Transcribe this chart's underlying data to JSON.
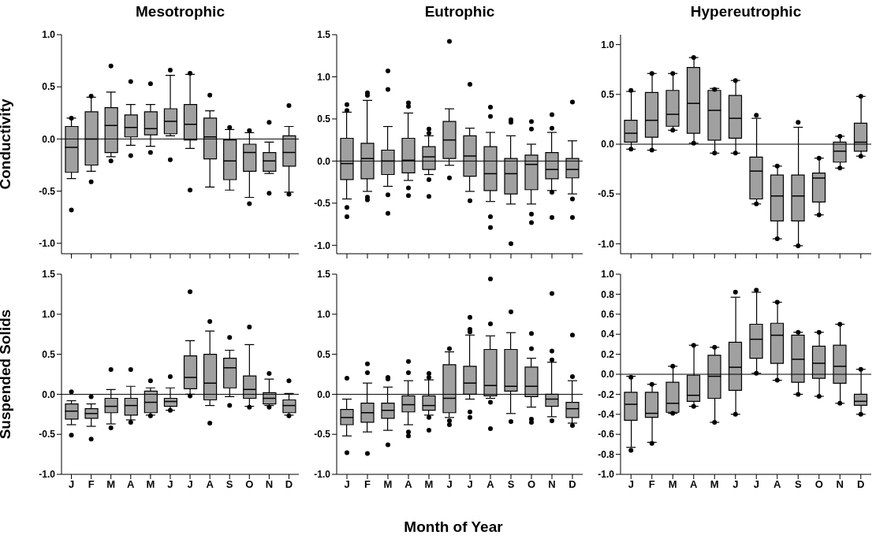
{
  "chart_data": [
    {
      "type": "box",
      "title": "Mesotrophic",
      "ylabel": "Conductivity",
      "categories": [
        null,
        null,
        null,
        null,
        null,
        null,
        null,
        null,
        null,
        null,
        null,
        null
      ],
      "color": "#a0a0a0",
      "ylim": [
        -1.1,
        1.0
      ],
      "yticks": [
        {
          "value": -1.0,
          "label": "-1.0"
        },
        {
          "value": -0.5,
          "label": "-0.5"
        },
        {
          "value": 0,
          "label": "0.0"
        },
        {
          "value": 0.5,
          "label": "0.5"
        },
        {
          "value": 1.0,
          "label": "1.0"
        }
      ],
      "tick_labels": "y",
      "ref_lines": [
        {
          "axis": "y",
          "value": 0
        }
      ],
      "boxes": [
        {
          "low": -0.38,
          "q1": -0.32,
          "median": -0.08,
          "q3": 0.12,
          "high": 0.2,
          "outliers": [
            0.2,
            -0.68
          ]
        },
        {
          "low": -0.31,
          "q1": -0.25,
          "median": 0.0,
          "q3": 0.26,
          "high": 0.4,
          "outliers": [
            0.41,
            -0.41
          ]
        },
        {
          "low": -0.17,
          "q1": -0.13,
          "median": 0.13,
          "q3": 0.3,
          "high": 0.45,
          "outliers": [
            0.7,
            -0.21
          ]
        },
        {
          "low": -0.06,
          "q1": 0.02,
          "median": 0.11,
          "q3": 0.23,
          "high": 0.33,
          "outliers": [
            0.55,
            -0.16
          ]
        },
        {
          "low": -0.07,
          "q1": 0.04,
          "median": 0.1,
          "q3": 0.26,
          "high": 0.33,
          "outliers": [
            0.53,
            -0.13
          ]
        },
        {
          "low": 0.03,
          "q1": 0.05,
          "median": 0.17,
          "q3": 0.29,
          "high": 0.61,
          "outliers": [
            0.66,
            -0.2
          ]
        },
        {
          "low": -0.09,
          "q1": -0.01,
          "median": 0.14,
          "q3": 0.33,
          "high": 0.62,
          "outliers": [
            0.63,
            -0.49
          ]
        },
        {
          "low": -0.46,
          "q1": -0.19,
          "median": 0.02,
          "q3": 0.2,
          "high": 0.27,
          "outliers": [
            0.42
          ]
        },
        {
          "low": -0.49,
          "q1": -0.39,
          "median": -0.21,
          "q3": -0.01,
          "high": 0.09,
          "outliers": [
            0.11
          ]
        },
        {
          "low": -0.56,
          "q1": -0.31,
          "median": -0.13,
          "q3": -0.05,
          "high": 0.06,
          "outliers": [
            0.08,
            -0.62
          ]
        },
        {
          "low": -0.33,
          "q1": -0.31,
          "median": -0.21,
          "q3": -0.13,
          "high": -0.03,
          "outliers": [
            0.16,
            -0.52
          ]
        },
        {
          "low": -0.51,
          "q1": -0.26,
          "median": -0.13,
          "q3": 0.03,
          "high": 0.12,
          "outliers": [
            0.32,
            -0.53
          ]
        }
      ]
    },
    {
      "type": "box",
      "title": "Eutrophic",
      "categories": [
        null,
        null,
        null,
        null,
        null,
        null,
        null,
        null,
        null,
        null,
        null,
        null
      ],
      "color": "#a0a0a0",
      "ylim": [
        -1.1,
        1.5
      ],
      "yticks": [
        {
          "value": -1.0,
          "label": "-1.0"
        },
        {
          "value": -0.5,
          "label": "-0.5"
        },
        {
          "value": 0,
          "label": "0.0"
        },
        {
          "value": 0.5,
          "label": "0.5"
        },
        {
          "value": 1.0,
          "label": "1.0"
        },
        {
          "value": 1.5,
          "label": "1.5"
        }
      ],
      "tick_labels": "y",
      "ref_lines": [
        {
          "axis": "y",
          "value": 0
        }
      ],
      "boxes": [
        {
          "low": -0.45,
          "q1": -0.22,
          "median": -0.03,
          "q3": 0.27,
          "high": 0.58,
          "outliers": [
            0.67,
            0.6,
            -0.55,
            -0.66
          ]
        },
        {
          "low": -0.36,
          "q1": -0.21,
          "median": 0.03,
          "q3": 0.21,
          "high": 0.72,
          "outliers": [
            0.81,
            0.78,
            -0.43,
            -0.46
          ]
        },
        {
          "low": -0.3,
          "q1": -0.16,
          "median": 0.0,
          "q3": 0.13,
          "high": 0.41,
          "outliers": [
            1.07,
            0.85,
            -0.4,
            -0.62
          ]
        },
        {
          "low": -0.23,
          "q1": -0.14,
          "median": 0.01,
          "q3": 0.27,
          "high": 0.57,
          "outliers": [
            0.69,
            0.65,
            -0.32,
            -0.41
          ]
        },
        {
          "low": -0.16,
          "q1": -0.1,
          "median": 0.05,
          "q3": 0.17,
          "high": 0.3,
          "outliers": [
            0.38,
            0.33,
            -0.22,
            -0.42
          ]
        },
        {
          "low": -0.05,
          "q1": 0.03,
          "median": 0.25,
          "q3": 0.47,
          "high": 0.62,
          "outliers": [
            1.42,
            -0.2
          ]
        },
        {
          "low": -0.36,
          "q1": -0.18,
          "median": 0.06,
          "q3": 0.3,
          "high": 0.39,
          "outliers": [
            0.91,
            -0.47
          ]
        },
        {
          "low": -0.48,
          "q1": -0.35,
          "median": -0.15,
          "q3": 0.17,
          "high": 0.34,
          "outliers": [
            0.64,
            0.53,
            -0.66,
            -0.79
          ]
        },
        {
          "low": -0.51,
          "q1": -0.39,
          "median": -0.15,
          "q3": 0.03,
          "high": 0.3,
          "outliers": [
            0.49,
            0.46,
            -0.98
          ]
        },
        {
          "low": -0.51,
          "q1": -0.34,
          "median": -0.04,
          "q3": 0.07,
          "high": 0.2,
          "outliers": [
            0.47,
            0.38,
            -0.63,
            -0.73
          ]
        },
        {
          "low": -0.35,
          "q1": -0.21,
          "median": -0.1,
          "q3": 0.1,
          "high": 0.34,
          "outliers": [
            0.55,
            0.39,
            -0.37,
            -0.67
          ]
        },
        {
          "low": -0.39,
          "q1": -0.2,
          "median": -0.1,
          "q3": 0.03,
          "high": 0.24,
          "outliers": [
            0.7,
            -0.45,
            -0.67
          ]
        }
      ]
    },
    {
      "type": "box",
      "title": "Hypereutrophic",
      "categories": [
        null,
        null,
        null,
        null,
        null,
        null,
        null,
        null,
        null,
        null,
        null,
        null
      ],
      "color": "#a0a0a0",
      "ylim": [
        -1.1,
        1.1
      ],
      "yticks": [
        {
          "value": -1.0,
          "label": "-1.0"
        },
        {
          "value": -0.5,
          "label": "-0.5"
        },
        {
          "value": 0,
          "label": "0.0"
        },
        {
          "value": 0.5,
          "label": "0.5"
        },
        {
          "value": 1.0,
          "label": "1.0"
        }
      ],
      "tick_labels": "y",
      "ref_lines": [
        {
          "axis": "y",
          "value": 0
        }
      ],
      "boxes": [
        {
          "low": -0.05,
          "q1": 0.02,
          "median": 0.11,
          "q3": 0.24,
          "high": 0.53,
          "outliers": [
            0.54,
            -0.05
          ]
        },
        {
          "low": -0.06,
          "q1": 0.07,
          "median": 0.24,
          "q3": 0.52,
          "high": 0.71,
          "outliers": [
            0.71,
            -0.06
          ]
        },
        {
          "low": 0.14,
          "q1": 0.18,
          "median": 0.3,
          "q3": 0.54,
          "high": 0.71,
          "outliers": [
            0.71,
            0.14
          ]
        },
        {
          "low": 0.01,
          "q1": 0.11,
          "median": 0.41,
          "q3": 0.77,
          "high": 0.87,
          "outliers": [
            0.87,
            0.01
          ]
        },
        {
          "low": -0.09,
          "q1": 0.04,
          "median": 0.34,
          "q3": 0.54,
          "high": 0.56,
          "outliers": [
            0.55,
            -0.09
          ]
        },
        {
          "low": -0.09,
          "q1": 0.06,
          "median": 0.26,
          "q3": 0.49,
          "high": 0.64,
          "outliers": [
            0.64,
            -0.09
          ]
        },
        {
          "low": -0.6,
          "q1": -0.55,
          "median": -0.27,
          "q3": -0.13,
          "high": 0.26,
          "outliers": [
            0.29,
            -0.6
          ]
        },
        {
          "low": -0.95,
          "q1": -0.77,
          "median": -0.52,
          "q3": -0.31,
          "high": -0.22,
          "outliers": [
            -0.22,
            -0.95
          ]
        },
        {
          "low": -1.02,
          "q1": -0.77,
          "median": -0.52,
          "q3": -0.31,
          "high": 0.17,
          "outliers": [
            0.22,
            -1.02
          ]
        },
        {
          "low": -0.71,
          "q1": -0.58,
          "median": -0.34,
          "q3": -0.29,
          "high": -0.14,
          "outliers": [
            -0.14,
            -0.71
          ]
        },
        {
          "low": -0.24,
          "q1": -0.18,
          "median": -0.07,
          "q3": 0.02,
          "high": 0.08,
          "outliers": [
            0.08,
            -0.24
          ]
        },
        {
          "low": -0.12,
          "q1": -0.07,
          "median": 0.02,
          "q3": 0.21,
          "high": 0.48,
          "outliers": [
            0.48,
            -0.12
          ]
        }
      ]
    },
    {
      "type": "box",
      "ylabel": "Suspended Solids",
      "categories": [
        "J",
        "F",
        "M",
        "A",
        "M",
        "J",
        "J",
        "A",
        "S",
        "O",
        "N",
        "D"
      ],
      "color": "#a0a0a0",
      "ylim": [
        -1.0,
        1.5
      ],
      "yticks": [
        {
          "value": -1.0,
          "label": "-1.0"
        },
        {
          "value": -0.5,
          "label": "-0.5"
        },
        {
          "value": 0,
          "label": "0.0"
        },
        {
          "value": 0.5,
          "label": "0.5"
        },
        {
          "value": 1.0,
          "label": "1.0"
        },
        {
          "value": 1.5,
          "label": "1.5"
        }
      ],
      "ref_lines": [
        {
          "axis": "y",
          "value": 0
        }
      ],
      "boxes": [
        {
          "low": -0.38,
          "q1": -0.31,
          "median": -0.21,
          "q3": -0.12,
          "high": -0.08,
          "outliers": [
            0.03,
            -0.51
          ]
        },
        {
          "low": -0.4,
          "q1": -0.3,
          "median": -0.24,
          "q3": -0.18,
          "high": -0.12,
          "outliers": [
            -0.03,
            -0.56
          ]
        },
        {
          "low": -0.37,
          "q1": -0.23,
          "median": -0.15,
          "q3": -0.05,
          "high": 0.06,
          "outliers": [
            0.31,
            -0.42
          ]
        },
        {
          "low": -0.32,
          "q1": -0.26,
          "median": -0.14,
          "q3": -0.05,
          "high": 0.1,
          "outliers": [
            0.31,
            -0.35
          ]
        },
        {
          "low": -0.26,
          "q1": -0.23,
          "median": -0.1,
          "q3": 0.04,
          "high": 0.08,
          "outliers": [
            0.17,
            -0.27
          ]
        },
        {
          "low": -0.2,
          "q1": -0.15,
          "median": -0.09,
          "q3": -0.05,
          "high": 0.08,
          "outliers": [
            0.22,
            -0.2
          ]
        },
        {
          "low": 0.0,
          "q1": 0.07,
          "median": 0.21,
          "q3": 0.48,
          "high": 0.67,
          "outliers": [
            1.28,
            -0.02
          ]
        },
        {
          "low": -0.14,
          "q1": -0.07,
          "median": 0.14,
          "q3": 0.5,
          "high": 0.79,
          "outliers": [
            0.91,
            -0.36
          ]
        },
        {
          "low": -0.03,
          "q1": 0.08,
          "median": 0.33,
          "q3": 0.45,
          "high": 0.55,
          "outliers": [
            0.71,
            -0.14
          ]
        },
        {
          "low": -0.15,
          "q1": -0.05,
          "median": 0.06,
          "q3": 0.23,
          "high": 0.62,
          "outliers": [
            0.84,
            -0.16
          ]
        },
        {
          "low": -0.14,
          "q1": -0.12,
          "median": -0.05,
          "q3": 0.02,
          "high": 0.19,
          "outliers": [
            0.26,
            -0.16
          ]
        },
        {
          "low": -0.26,
          "q1": -0.23,
          "median": -0.14,
          "q3": -0.07,
          "high": 0.01,
          "outliers": [
            0.17,
            -0.27
          ]
        }
      ]
    },
    {
      "type": "box",
      "xlabel": "Month of Year",
      "categories": [
        "J",
        "F",
        "M",
        "A",
        "M",
        "J",
        "J",
        "A",
        "S",
        "O",
        "N",
        "D"
      ],
      "color": "#a0a0a0",
      "ylim": [
        -1.0,
        1.5
      ],
      "yticks": [
        {
          "value": -1.0,
          "label": "-1.0"
        },
        {
          "value": -0.5,
          "label": "-0.5"
        },
        {
          "value": 0,
          "label": "0.0"
        },
        {
          "value": 0.5,
          "label": "0.5"
        },
        {
          "value": 1.0,
          "label": "1.0"
        },
        {
          "value": 1.5,
          "label": "1.5"
        }
      ],
      "ref_lines": [
        {
          "axis": "y",
          "value": 0
        }
      ],
      "boxes": [
        {
          "low": -0.52,
          "q1": -0.38,
          "median": -0.29,
          "q3": -0.19,
          "high": -0.06,
          "outliers": [
            0.2,
            -0.73
          ]
        },
        {
          "low": -0.47,
          "q1": -0.35,
          "median": -0.23,
          "q3": -0.11,
          "high": 0.14,
          "outliers": [
            0.38,
            0.27,
            -0.74
          ]
        },
        {
          "low": -0.45,
          "q1": -0.3,
          "median": -0.2,
          "q3": -0.11,
          "high": 0.09,
          "outliers": [
            0.21,
            0.19,
            -0.63
          ]
        },
        {
          "low": -0.38,
          "q1": -0.22,
          "median": -0.13,
          "q3": -0.02,
          "high": 0.17,
          "outliers": [
            0.41,
            0.27,
            -0.47,
            -0.52
          ]
        },
        {
          "low": -0.26,
          "q1": -0.2,
          "median": -0.14,
          "q3": -0.02,
          "high": 0.18,
          "outliers": [
            0.26,
            0.21,
            -0.29,
            -0.45
          ]
        },
        {
          "low": -0.29,
          "q1": -0.23,
          "median": -0.05,
          "q3": 0.37,
          "high": 0.53,
          "outliers": [
            0.57,
            -0.33,
            -0.38
          ]
        },
        {
          "low": -0.06,
          "q1": 0.0,
          "median": 0.14,
          "q3": 0.35,
          "high": 0.74,
          "outliers": [
            0.96,
            0.81,
            0.78,
            -0.22,
            -0.29
          ]
        },
        {
          "low": -0.05,
          "q1": -0.02,
          "median": 0.11,
          "q3": 0.56,
          "high": 0.73,
          "outliers": [
            1.44,
            0.88,
            -0.1,
            -0.43
          ]
        },
        {
          "low": -0.24,
          "q1": 0.04,
          "median": 0.1,
          "q3": 0.56,
          "high": 0.77,
          "outliers": [
            1.03,
            -0.34
          ]
        },
        {
          "low": -0.16,
          "q1": -0.03,
          "median": 0.1,
          "q3": 0.34,
          "high": 0.45,
          "outliers": [
            0.76,
            0.57,
            -0.31,
            -0.35
          ]
        },
        {
          "low": -0.28,
          "q1": -0.15,
          "median": -0.06,
          "q3": 0.0,
          "high": 0.4,
          "outliers": [
            1.26,
            0.54,
            0.43,
            -0.33
          ]
        },
        {
          "low": -0.36,
          "q1": -0.29,
          "median": -0.18,
          "q3": -0.1,
          "high": 0.17,
          "outliers": [
            0.74,
            0.22,
            -0.39
          ]
        }
      ]
    },
    {
      "type": "box",
      "categories": [
        "J",
        "F",
        "M",
        "A",
        "M",
        "J",
        "J",
        "A",
        "S",
        "O",
        "N",
        "D"
      ],
      "color": "#a0a0a0",
      "ylim": [
        -1.0,
        1.0
      ],
      "yticks": [
        {
          "value": -1.0,
          "label": "-1.0"
        },
        {
          "value": -0.8,
          "label": "-0.8"
        },
        {
          "value": -0.6,
          "label": "-0.6"
        },
        {
          "value": -0.4,
          "label": "-0.4"
        },
        {
          "value": -0.2,
          "label": "-0.2"
        },
        {
          "value": 0,
          "label": "0.0"
        },
        {
          "value": 0.2,
          "label": "0.2"
        },
        {
          "value": 0.4,
          "label": "0.4"
        },
        {
          "value": 0.6,
          "label": "0.6"
        },
        {
          "value": 0.8,
          "label": "0.8"
        },
        {
          "value": 1.0,
          "label": "1.0"
        }
      ],
      "ref_lines": [
        {
          "axis": "y",
          "value": 0
        }
      ],
      "boxes": [
        {
          "low": -0.73,
          "q1": -0.46,
          "median": -0.3,
          "q3": -0.18,
          "high": -0.02,
          "outliers": [
            -0.03,
            -0.76
          ]
        },
        {
          "low": -0.68,
          "q1": -0.43,
          "median": -0.39,
          "q3": -0.18,
          "high": -0.1,
          "outliers": [
            -0.1,
            -0.69
          ]
        },
        {
          "low": -0.39,
          "q1": -0.38,
          "median": -0.29,
          "q3": -0.08,
          "high": 0.08,
          "outliers": [
            0.08,
            -0.39
          ]
        },
        {
          "low": -0.32,
          "q1": -0.27,
          "median": -0.21,
          "q3": -0.01,
          "high": 0.29,
          "outliers": [
            0.29,
            -0.32
          ]
        },
        {
          "low": -0.48,
          "q1": -0.24,
          "median": -0.02,
          "q3": 0.19,
          "high": 0.27,
          "outliers": [
            0.27,
            -0.48
          ]
        },
        {
          "low": -0.4,
          "q1": -0.16,
          "median": 0.07,
          "q3": 0.32,
          "high": 0.77,
          "outliers": [
            0.82,
            -0.4
          ]
        },
        {
          "low": 0.01,
          "q1": 0.16,
          "median": 0.35,
          "q3": 0.5,
          "high": 0.82,
          "outliers": [
            0.84,
            0.01
          ]
        },
        {
          "low": -0.06,
          "q1": 0.11,
          "median": 0.39,
          "q3": 0.51,
          "high": 0.72,
          "outliers": [
            0.72,
            -0.06
          ]
        },
        {
          "low": -0.2,
          "q1": -0.08,
          "median": 0.15,
          "q3": 0.39,
          "high": 0.42,
          "outliers": [
            0.42,
            -0.2
          ]
        },
        {
          "low": -0.22,
          "q1": -0.04,
          "median": 0.11,
          "q3": 0.28,
          "high": 0.42,
          "outliers": [
            0.42,
            -0.22
          ]
        },
        {
          "low": -0.29,
          "q1": -0.09,
          "median": 0.08,
          "q3": 0.29,
          "high": 0.5,
          "outliers": [
            0.5,
            -0.29
          ]
        },
        {
          "low": -0.4,
          "q1": -0.31,
          "median": -0.27,
          "q3": -0.2,
          "high": 0.05,
          "outliers": [
            0.05,
            -0.4
          ]
        }
      ]
    }
  ]
}
